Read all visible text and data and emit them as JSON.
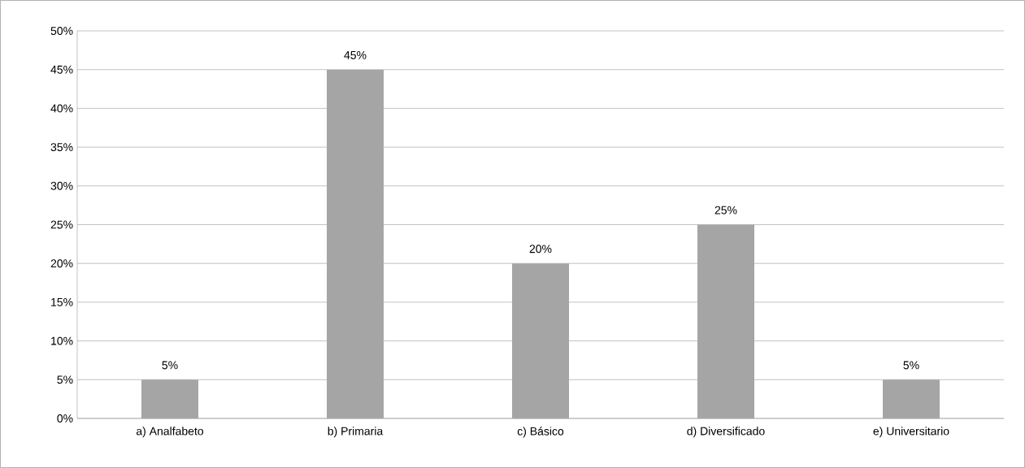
{
  "chart_data": {
    "type": "bar",
    "categories": [
      "a) Analfabeto",
      "b) Primaria",
      "c) Básico",
      "d) Diversificado",
      "e) Universitario"
    ],
    "values": [
      5,
      45,
      20,
      25,
      5
    ],
    "value_labels": [
      "5%",
      "45%",
      "20%",
      "25%",
      "5%"
    ],
    "color": "#a5a5a5",
    "ylim": [
      0,
      50
    ],
    "yticks": [
      {
        "value": 0,
        "label": "0%"
      },
      {
        "value": 5,
        "label": "5%"
      },
      {
        "value": 10,
        "label": "10%"
      },
      {
        "value": 15,
        "label": "15%"
      },
      {
        "value": 20,
        "label": "20%"
      },
      {
        "value": 25,
        "label": "25%"
      },
      {
        "value": 30,
        "label": "30%"
      },
      {
        "value": 35,
        "label": "35%"
      },
      {
        "value": 40,
        "label": "40%"
      },
      {
        "value": 45,
        "label": "45%"
      },
      {
        "value": 50,
        "label": "50%"
      }
    ],
    "grid": "y"
  }
}
